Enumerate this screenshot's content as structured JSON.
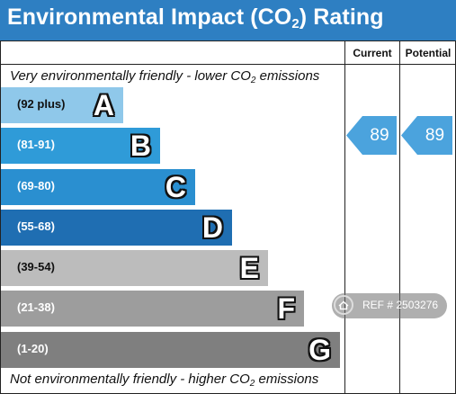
{
  "header": {
    "title_prefix": "Environmental Impact (CO",
    "title_sub": "2",
    "title_suffix": ") Rating",
    "background": "#2e7fc2"
  },
  "columns": {
    "current": "Current",
    "potential": "Potential"
  },
  "captions": {
    "top_prefix": "Very environmentally friendly - lower CO",
    "top_sub": "2",
    "top_suffix": " emissions",
    "bottom_prefix": "Not environmentally friendly - higher CO",
    "bottom_sub": "2",
    "bottom_suffix": " emissions"
  },
  "bands": [
    {
      "range": "(92 plus)",
      "letter": "A",
      "color": "#8fc8ea",
      "range_color": "#111111"
    },
    {
      "range": "(81-91)",
      "letter": "B",
      "color": "#2f9bd8",
      "range_color": "#ffffff"
    },
    {
      "range": "(69-80)",
      "letter": "C",
      "color": "#2a8fd0",
      "range_color": "#ffffff"
    },
    {
      "range": "(55-68)",
      "letter": "D",
      "color": "#1f6eb2",
      "range_color": "#ffffff"
    },
    {
      "range": "(39-54)",
      "letter": "E",
      "color": "#bcbcbc",
      "range_color": "#111111"
    },
    {
      "range": "(21-38)",
      "letter": "F",
      "color": "#9d9d9d",
      "range_color": "#ffffff"
    },
    {
      "range": "(1-20)",
      "letter": "G",
      "color": "#7f7f7f",
      "range_color": "#ffffff"
    }
  ],
  "ratings": {
    "current": "89",
    "potential": "89",
    "arrow_color": "#4ba3dd"
  },
  "watermark": {
    "text": "REF # 2503276",
    "icon": "home-icon"
  }
}
